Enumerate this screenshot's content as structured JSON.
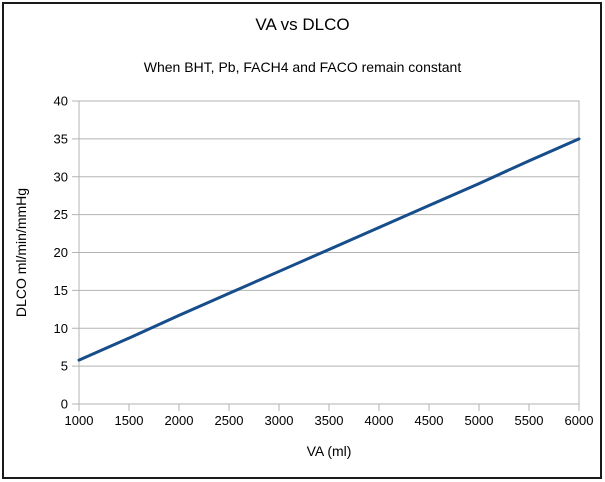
{
  "header": {
    "title": "VA vs DLCO",
    "subtitle": "When BHT, Pb, FACH4 and FACO remain constant"
  },
  "chart_data": {
    "type": "line",
    "title": "VA vs DLCO",
    "subtitle": "When BHT, Pb, FACH4 and FACO remain constant",
    "xlabel": "VA (ml)",
    "ylabel": "DLCO ml/min/mmHg",
    "xlim": [
      1000,
      6000
    ],
    "ylim": [
      0,
      40
    ],
    "x_ticks": [
      1000,
      1500,
      2000,
      2500,
      3000,
      3500,
      4000,
      4500,
      5000,
      5500,
      6000
    ],
    "y_ticks": [
      0,
      5,
      10,
      15,
      20,
      25,
      30,
      35,
      40
    ],
    "grid": "horizontal-only",
    "legend_position": "none",
    "series": [
      {
        "name": "DLCO",
        "x": [
          1000,
          1500,
          2000,
          2500,
          3000,
          3500,
          4000,
          4500,
          5000,
          5500,
          6000
        ],
        "y": [
          5.8,
          8.7,
          11.7,
          14.6,
          17.5,
          20.4,
          23.3,
          26.2,
          29.1,
          32.1,
          35.0
        ]
      }
    ]
  },
  "colors": {
    "background": "#ffffff",
    "frame_border": "#1a1a1a",
    "grid": "#b3b3b3",
    "axis": "#b3b3b3",
    "series_line": "#164D8A",
    "text": "#000000"
  }
}
